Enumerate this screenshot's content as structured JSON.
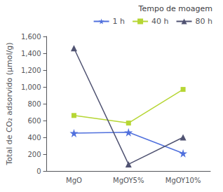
{
  "chart_data": {
    "type": "line",
    "categories": [
      "MgO",
      "MgOY5%",
      "MgOY10%"
    ],
    "series": [
      {
        "name": "1 h",
        "values": [
          450,
          460,
          210
        ],
        "marker": "star"
      },
      {
        "name": "40 h",
        "values": [
          660,
          570,
          970
        ],
        "marker": "square"
      },
      {
        "name": "80 h",
        "values": [
          1460,
          80,
          400
        ],
        "marker": "triangle"
      }
    ],
    "ylabel": "Total de CO₂ adsorvido (μmol/g)",
    "legend_title": "Tempo de moagem",
    "legend": "upper right",
    "ylim": [
      0,
      1600
    ],
    "yticks": [
      0,
      200,
      400,
      600,
      800,
      1000,
      1200,
      1400,
      1600
    ],
    "grid": false
  }
}
